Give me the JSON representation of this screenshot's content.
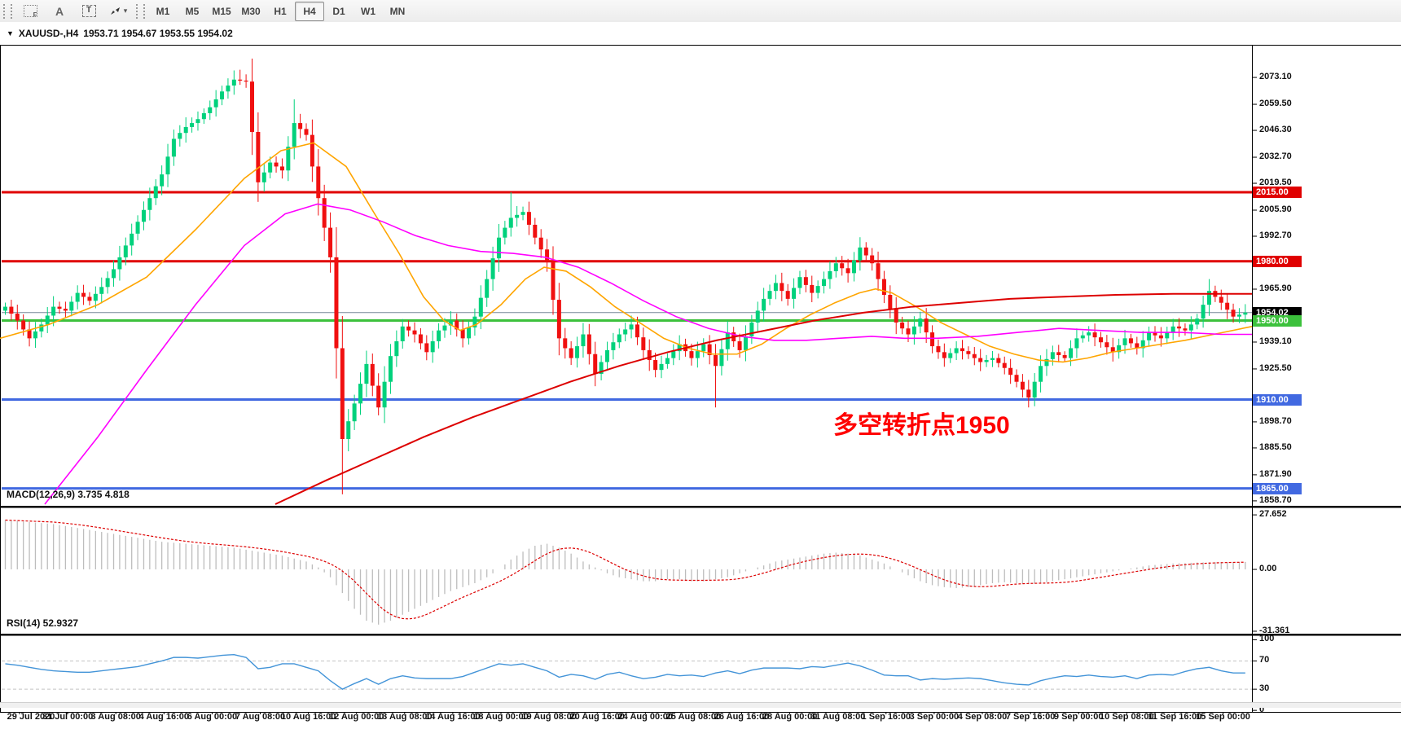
{
  "toolbar": {
    "icons": [
      {
        "name": "dotted-grid-f-icon",
        "glyph": "F"
      },
      {
        "name": "text-label-icon",
        "glyph": "A"
      },
      {
        "name": "text-box-icon",
        "glyph": "T"
      },
      {
        "name": "cursor-arrows-icon",
        "glyph": "⬖",
        "caret": "▾"
      }
    ],
    "timeframes": [
      "M1",
      "M5",
      "M15",
      "M30",
      "H1",
      "H4",
      "D1",
      "W1",
      "MN"
    ],
    "active_timeframe": "H4"
  },
  "header": {
    "dropdown_glyph": "▼",
    "symbol": "XAUUSD-,H4",
    "ohlc_text": "1953.71 1954.67 1953.55 1954.02",
    "open": "1953.71",
    "high": "1954.67",
    "low": "1953.55",
    "close": "1954.02"
  },
  "annotation": {
    "text": "多空转折点1950",
    "color": "#ff0000"
  },
  "indicators": {
    "macd_label": "MACD(12,26,9)",
    "macd_values": " 3.735 4.818",
    "rsi_label": "RSI(14)",
    "rsi_value": " 52.9327"
  },
  "price_axis": {
    "ticks": [
      "2073.10",
      "2059.50",
      "2046.30",
      "2032.70",
      "2019.50",
      "2005.90",
      "1992.70",
      "1965.90",
      "1939.10",
      "1925.50",
      "1898.70",
      "1885.50",
      "1871.90",
      "1858.70"
    ],
    "tags": [
      {
        "value": "2015.00",
        "bg": "#e00000"
      },
      {
        "value": "1980.00",
        "bg": "#e00000"
      },
      {
        "value": "1954.02",
        "bg": "#000000"
      },
      {
        "value": "1950.00",
        "bg": "#3cc13c"
      },
      {
        "value": "1910.00",
        "bg": "#4169e1"
      },
      {
        "value": "1865.00",
        "bg": "#4169e1"
      }
    ]
  },
  "macd_axis": {
    "ticks": [
      "27.652",
      "0.00",
      "-31.361"
    ]
  },
  "rsi_axis": {
    "ticks": [
      "100",
      "70",
      "30",
      "0"
    ],
    "levels": [
      70,
      30
    ]
  },
  "time_axis": {
    "labels": [
      "29 Jul 2020",
      "31 Jul 00:00",
      "3 Aug 08:00",
      "4 Aug 16:00",
      "6 Aug 00:00",
      "7 Aug 08:00",
      "10 Aug 16:00",
      "12 Aug 00:00",
      "13 Aug 08:00",
      "14 Aug 16:00",
      "18 Aug 00:00",
      "19 Aug 08:00",
      "20 Aug 16:00",
      "24 Aug 00:00",
      "25 Aug 08:00",
      "26 Aug 16:00",
      "28 Aug 00:00",
      "31 Aug 08:00",
      "1 Sep 16:00",
      "3 Sep 00:00",
      "4 Sep 08:00",
      "7 Sep 16:00",
      "9 Sep 00:00",
      "10 Sep 08:00",
      "11 Sep 16:00",
      "15 Sep 00:00"
    ]
  },
  "colors": {
    "up_candle": "#00d17c",
    "down_candle": "#f01010",
    "ma_fast": "#ffa500",
    "ma_mid": "#ff00ff",
    "ma_slow": "#dd0000",
    "hline_red": "#e00000",
    "hline_green": "#3cc13c",
    "hline_blue": "#4169e1",
    "price_line": "#778899",
    "macd_hist": "#bdbdbd",
    "macd_signal": "#dd0000",
    "rsi_line": "#4394d8",
    "rsi_level": "#c4c4c4",
    "annotation": "#ff0000"
  },
  "chart_data": [
    {
      "type": "candlestick",
      "symbol": "XAUUSD",
      "timeframe": "H4",
      "ylim": [
        1856.6,
        2088.8
      ],
      "grid": false,
      "close_anchors": [
        1957,
        1950,
        1941,
        1948,
        1957,
        1955,
        1964,
        1960,
        1967,
        1976,
        1988,
        2000,
        2012,
        2024,
        2042,
        2048,
        2052,
        2058,
        2066,
        2072,
        2071,
        2020,
        2030,
        2026,
        2050,
        2044,
        2012,
        1982,
        1890,
        1908,
        1928,
        1906,
        1932,
        1947,
        1943,
        1934,
        1945,
        1950,
        1941,
        1952,
        1971,
        1992,
        2002,
        2005,
        1992,
        1980,
        1941,
        1931,
        1943,
        1923,
        1935,
        1943,
        1948,
        1935,
        1925,
        1931,
        1938,
        1931,
        1938,
        1927,
        1944,
        1935,
        1949,
        1961,
        1969,
        1961,
        1972,
        1964,
        1971,
        1979,
        1974,
        1987,
        1979,
        1963,
        1949,
        1943,
        1951,
        1937,
        1931,
        1936,
        1933,
        1929,
        1931,
        1926,
        1919,
        1911,
        1927,
        1934,
        1931,
        1941,
        1944,
        1939,
        1934,
        1941,
        1936,
        1944,
        1941,
        1947,
        1945,
        1951,
        1965,
        1959,
        1952,
        1954
      ],
      "first_open": 1955,
      "wick_overrides": {
        "39": {
          "high": 2077
        },
        "48": {
          "high": 2062
        },
        "56": {
          "low": 1862
        },
        "62": {
          "low": 1902
        },
        "84": {
          "high": 2015
        },
        "118": {
          "low": 1906
        },
        "170": {
          "low": 1906
        },
        "200": {
          "high": 1971
        }
      },
      "hlines": [
        {
          "price": 2015.0,
          "color": "#e00000",
          "w": 3
        },
        {
          "price": 1980.0,
          "color": "#e00000",
          "w": 3
        },
        {
          "price": 1954.02,
          "color": "#778899",
          "w": 1
        },
        {
          "price": 1950.0,
          "color": "#3cc13c",
          "w": 3
        },
        {
          "price": 1910.0,
          "color": "#4169e1",
          "w": 3
        },
        {
          "price": 1865.0,
          "color": "#4169e1",
          "w": 3
        }
      ],
      "ma_fast": [
        [
          0,
          1941
        ],
        [
          60,
          1948
        ],
        [
          120,
          1958
        ],
        [
          180,
          1972
        ],
        [
          240,
          1996
        ],
        [
          300,
          2022
        ],
        [
          345,
          2036
        ],
        [
          385,
          2040
        ],
        [
          425,
          2028
        ],
        [
          460,
          2004
        ],
        [
          490,
          1984
        ],
        [
          520,
          1962
        ],
        [
          545,
          1950
        ],
        [
          565,
          1945
        ],
        [
          585,
          1948
        ],
        [
          615,
          1958
        ],
        [
          645,
          1971
        ],
        [
          668,
          1977
        ],
        [
          695,
          1975
        ],
        [
          725,
          1967
        ],
        [
          755,
          1957
        ],
        [
          785,
          1949
        ],
        [
          815,
          1941
        ],
        [
          845,
          1936
        ],
        [
          875,
          1933
        ],
        [
          905,
          1933
        ],
        [
          935,
          1938
        ],
        [
          965,
          1946
        ],
        [
          995,
          1953
        ],
        [
          1025,
          1959
        ],
        [
          1055,
          1964
        ],
        [
          1075,
          1966
        ],
        [
          1095,
          1964
        ],
        [
          1125,
          1957
        ],
        [
          1155,
          1949
        ],
        [
          1185,
          1943
        ],
        [
          1215,
          1937
        ],
        [
          1245,
          1933
        ],
        [
          1275,
          1930
        ],
        [
          1305,
          1929
        ],
        [
          1335,
          1931
        ],
        [
          1365,
          1934
        ],
        [
          1395,
          1936
        ],
        [
          1425,
          1938
        ],
        [
          1455,
          1940
        ],
        [
          1490,
          1943
        ],
        [
          1537,
          1947
        ]
      ],
      "ma_mid": [
        [
          55,
          1857
        ],
        [
          120,
          1891
        ],
        [
          180,
          1925
        ],
        [
          240,
          1958
        ],
        [
          300,
          1988
        ],
        [
          350,
          2004
        ],
        [
          390,
          2009
        ],
        [
          430,
          2006
        ],
        [
          470,
          2000
        ],
        [
          510,
          1993
        ],
        [
          550,
          1988
        ],
        [
          590,
          1985
        ],
        [
          630,
          1984
        ],
        [
          670,
          1982
        ],
        [
          710,
          1977
        ],
        [
          750,
          1969
        ],
        [
          790,
          1960
        ],
        [
          830,
          1952
        ],
        [
          870,
          1946
        ],
        [
          910,
          1942
        ],
        [
          950,
          1940
        ],
        [
          990,
          1940
        ],
        [
          1030,
          1941
        ],
        [
          1070,
          1942
        ],
        [
          1110,
          1941
        ],
        [
          1150,
          1941
        ],
        [
          1200,
          1942
        ],
        [
          1250,
          1944
        ],
        [
          1300,
          1946
        ],
        [
          1350,
          1945
        ],
        [
          1400,
          1944
        ],
        [
          1450,
          1944
        ],
        [
          1500,
          1943
        ],
        [
          1537,
          1943
        ]
      ],
      "ma_slow": [
        [
          338,
          1857
        ],
        [
          400,
          1869
        ],
        [
          460,
          1880
        ],
        [
          520,
          1891
        ],
        [
          580,
          1901
        ],
        [
          640,
          1910
        ],
        [
          700,
          1919
        ],
        [
          760,
          1927
        ],
        [
          820,
          1934
        ],
        [
          880,
          1940
        ],
        [
          940,
          1945
        ],
        [
          1000,
          1950
        ],
        [
          1060,
          1954
        ],
        [
          1120,
          1957
        ],
        [
          1180,
          1959
        ],
        [
          1240,
          1961
        ],
        [
          1300,
          1962
        ],
        [
          1370,
          1963
        ],
        [
          1440,
          1963.5
        ],
        [
          1537,
          1963.5
        ]
      ]
    },
    {
      "type": "bar",
      "title": "MACD(12,26,9)",
      "current_values": [
        3.735,
        4.818
      ],
      "ylim": [
        -32.2,
        31.0
      ],
      "values": [
        25,
        24.5,
        24,
        23.5,
        23,
        22,
        21,
        20,
        19,
        18,
        17,
        16,
        15,
        14,
        13.5,
        13,
        12.5,
        12,
        11.5,
        11,
        10,
        9,
        8,
        7,
        5.5,
        4,
        1,
        -4,
        -12,
        -20,
        -26,
        -28,
        -26,
        -23,
        -20,
        -17,
        -14,
        -11,
        -9,
        -7,
        -4,
        0,
        5,
        9,
        12,
        13,
        11,
        8,
        4,
        1,
        -2,
        -4,
        -5,
        -6,
        -6,
        -5,
        -5,
        -6,
        -6,
        -5,
        -4,
        -2,
        0,
        2,
        4,
        5,
        6,
        7,
        8,
        8.5,
        8,
        7,
        5,
        3,
        0,
        -3,
        -6,
        -8,
        -9,
        -9.5,
        -9,
        -8,
        -7,
        -6.5,
        -7,
        -7.5,
        -7,
        -6,
        -5,
        -4,
        -3,
        -2,
        -1,
        0,
        1,
        2,
        2.5,
        3,
        3.2,
        3.5,
        3.6,
        3.7,
        3.7,
        3.735
      ]
    },
    {
      "type": "line",
      "title": "RSI(14)",
      "current_value": 52.9327,
      "ylim": [
        -1,
        104
      ],
      "levels": [
        70,
        30
      ],
      "values": [
        66,
        64,
        61,
        58,
        56,
        55,
        54,
        54,
        56,
        58,
        60,
        62,
        66,
        70,
        75,
        75,
        74,
        76,
        78,
        79,
        75,
        59,
        61,
        66,
        66,
        61,
        56,
        42,
        30,
        38,
        45,
        37,
        45,
        49,
        46,
        45,
        45,
        45,
        48,
        54,
        60,
        66,
        64,
        66,
        61,
        56,
        47,
        51,
        49,
        44,
        51,
        54,
        49,
        45,
        47,
        51,
        49,
        50,
        48,
        53,
        56,
        52,
        57,
        60,
        60,
        60,
        59,
        62,
        61,
        64,
        67,
        63,
        57,
        50,
        49,
        49,
        43,
        45,
        44,
        45,
        46,
        45,
        42,
        39,
        37,
        36,
        42,
        46,
        49,
        48,
        50,
        48,
        47,
        49,
        45,
        50,
        51,
        50,
        55,
        59,
        61,
        56,
        53,
        53
      ]
    }
  ]
}
